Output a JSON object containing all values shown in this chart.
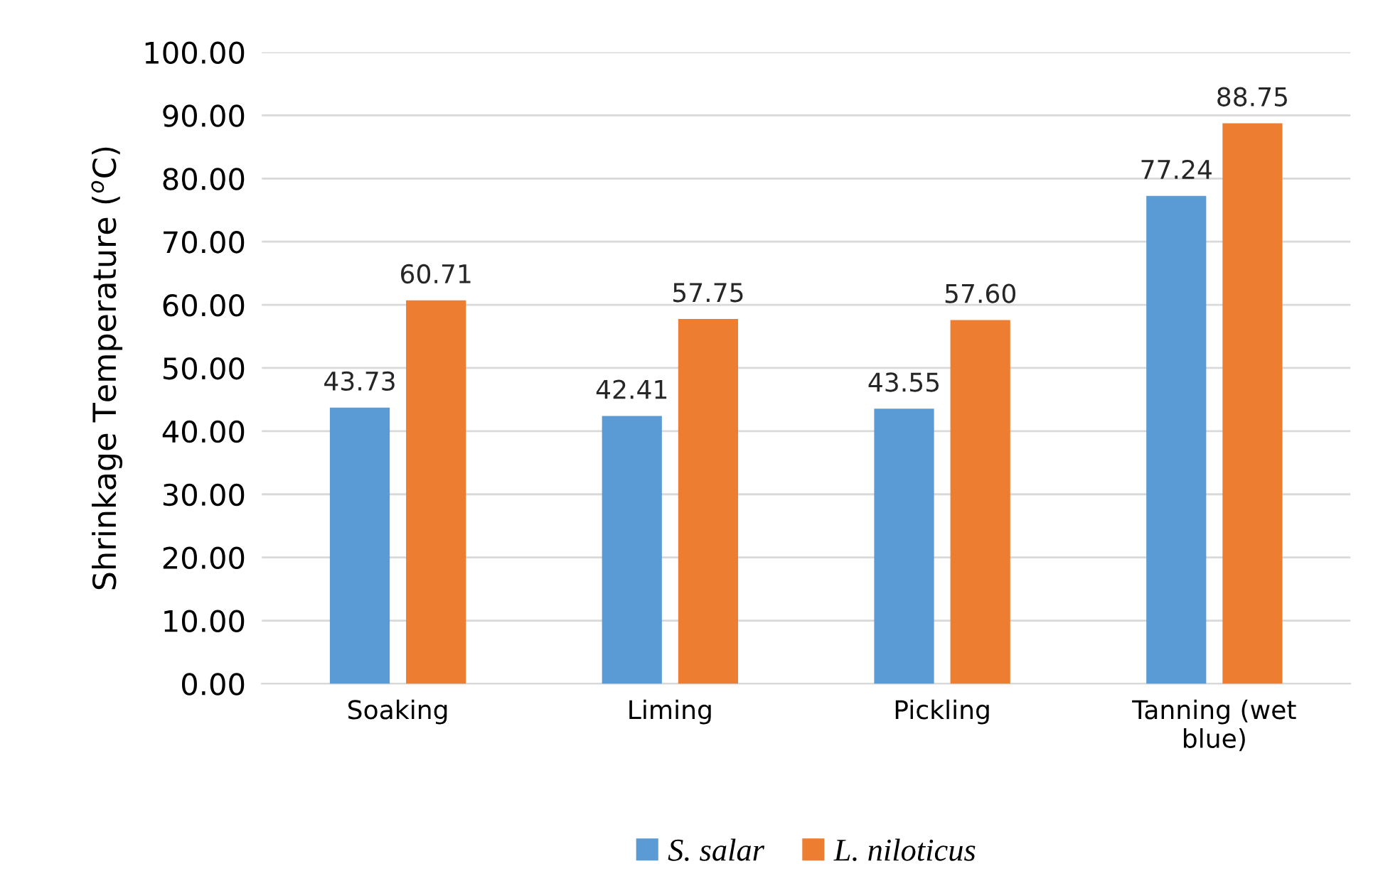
{
  "chart_data": {
    "type": "bar",
    "ylabel": "Shrinkage Temperature ($^{o}$C)",
    "categories": [
      "Soaking",
      "Liming",
      "Pickling",
      "Tanning (wet\nblue)"
    ],
    "series": [
      {
        "name": "S. salar",
        "color": "#5b9bd5",
        "values": [
          43.73,
          42.41,
          43.55,
          77.24
        ],
        "value_labels": [
          "43.73",
          "42.41",
          "43.55",
          "77.24"
        ]
      },
      {
        "name": "L. niloticus",
        "color": "#ed7d31",
        "values": [
          60.71,
          57.75,
          57.6,
          88.75
        ],
        "value_labels": [
          "60.71",
          "57.75",
          "57.60",
          "88.75"
        ]
      }
    ],
    "ylim": [
      0,
      100
    ],
    "yticks": [
      {
        "value": 0,
        "label": "0.00"
      },
      {
        "value": 10,
        "label": "10.00"
      },
      {
        "value": 20,
        "label": "20.00"
      },
      {
        "value": 30,
        "label": "30.00"
      },
      {
        "value": 40,
        "label": "40.00"
      },
      {
        "value": 50,
        "label": "50.00"
      },
      {
        "value": 60,
        "label": "60.00"
      },
      {
        "value": 70,
        "label": "70.00"
      },
      {
        "value": 80,
        "label": "80.00"
      },
      {
        "value": 90,
        "label": "90.00"
      },
      {
        "value": 100,
        "label": "100.00"
      }
    ],
    "grid": "y",
    "legend": "bottom"
  }
}
